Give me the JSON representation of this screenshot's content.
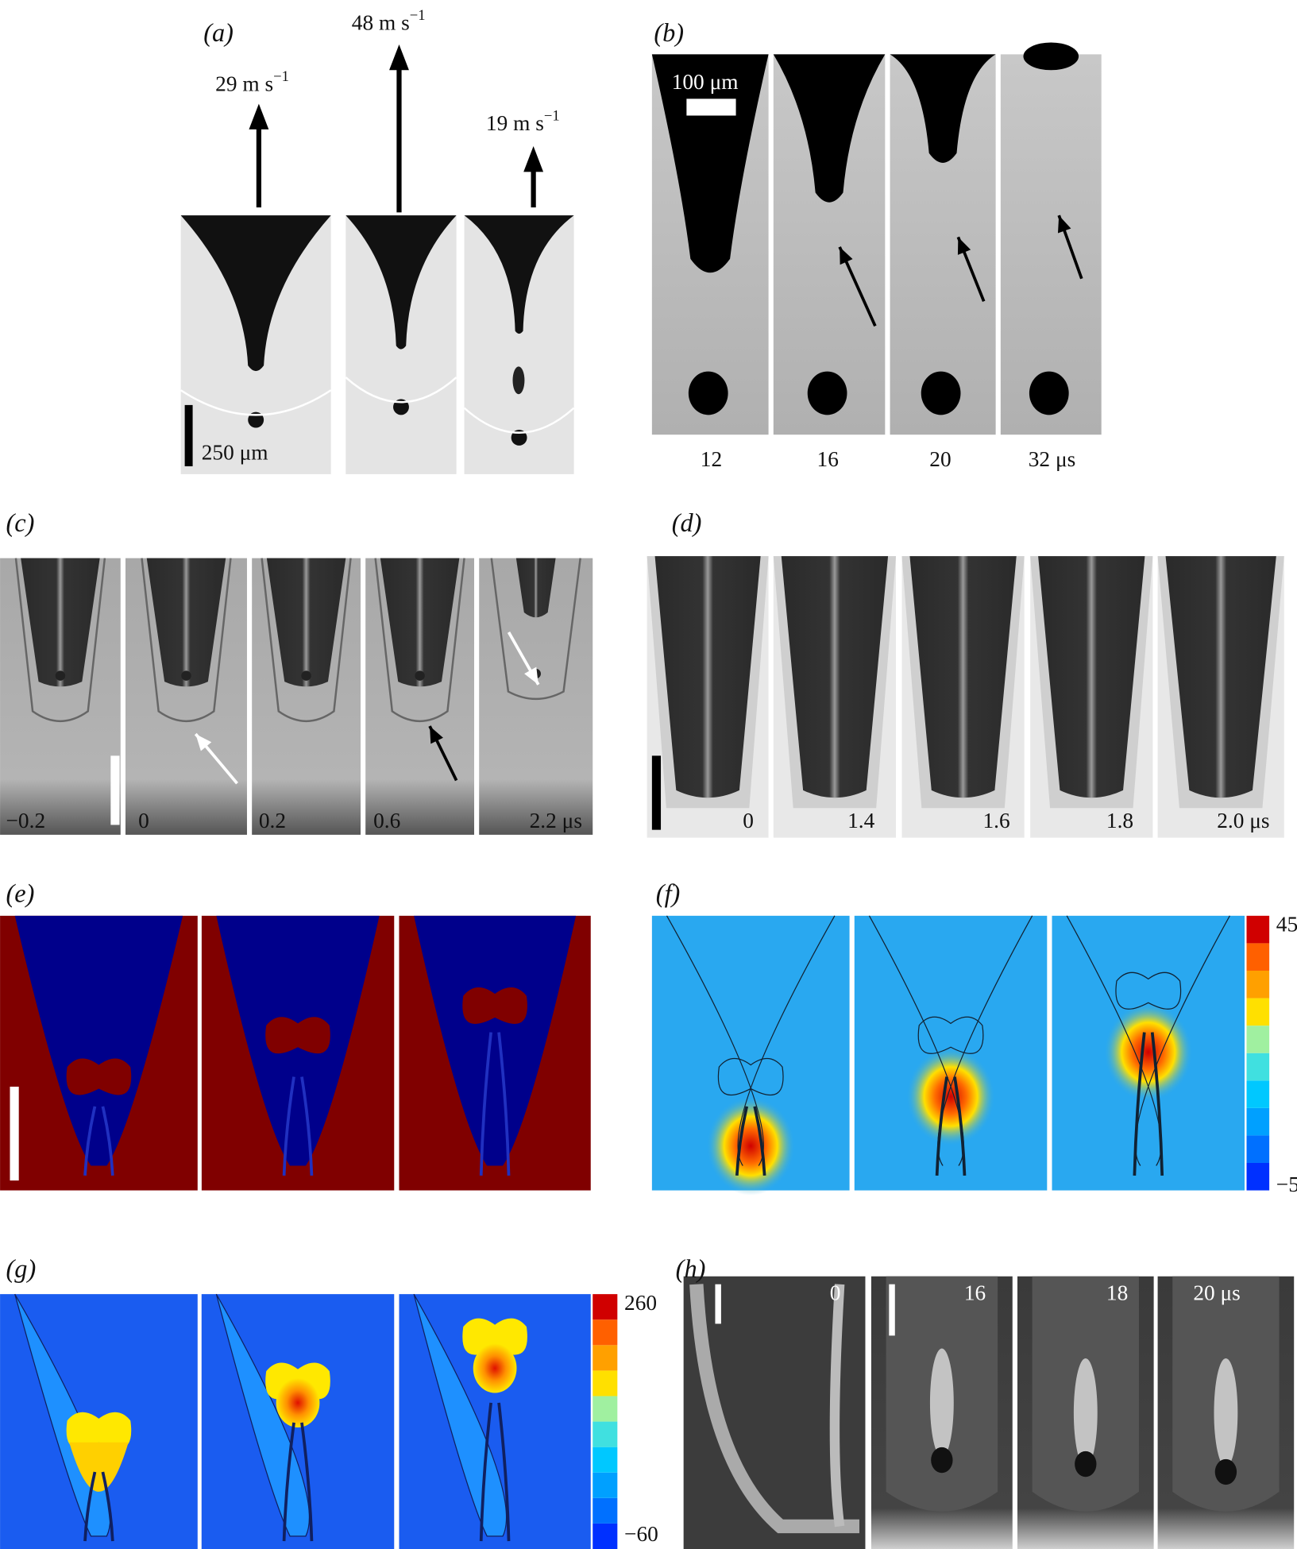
{
  "panels": [
    {
      "label": "(a)",
      "velocities": [
        {
          "value": "29 m s",
          "exp": "−1"
        },
        {
          "value": "48 m s",
          "exp": "−1"
        },
        {
          "value": "19 m s",
          "exp": "−1"
        }
      ],
      "scale_bar": "250 μm"
    },
    {
      "label": "(b)",
      "scale_bar": "100 μm",
      "times": [
        "12",
        "16",
        "20",
        "32 μs"
      ]
    },
    {
      "label": "(c)",
      "times": [
        "−0.2",
        "0",
        "0.2",
        "0.6",
        "2.2 μs"
      ]
    },
    {
      "label": "(d)",
      "times": [
        "0",
        "1.4",
        "1.6",
        "1.8",
        "2.0 μs"
      ]
    },
    {
      "label": "(e)"
    },
    {
      "label": "(f)",
      "colorbar": [
        "45",
        "−5"
      ]
    },
    {
      "label": "(g)",
      "colorbar": [
        "260",
        "−60"
      ]
    },
    {
      "label": "(h)",
      "times": [
        "0",
        "16",
        "18",
        "20 μs"
      ]
    }
  ]
}
